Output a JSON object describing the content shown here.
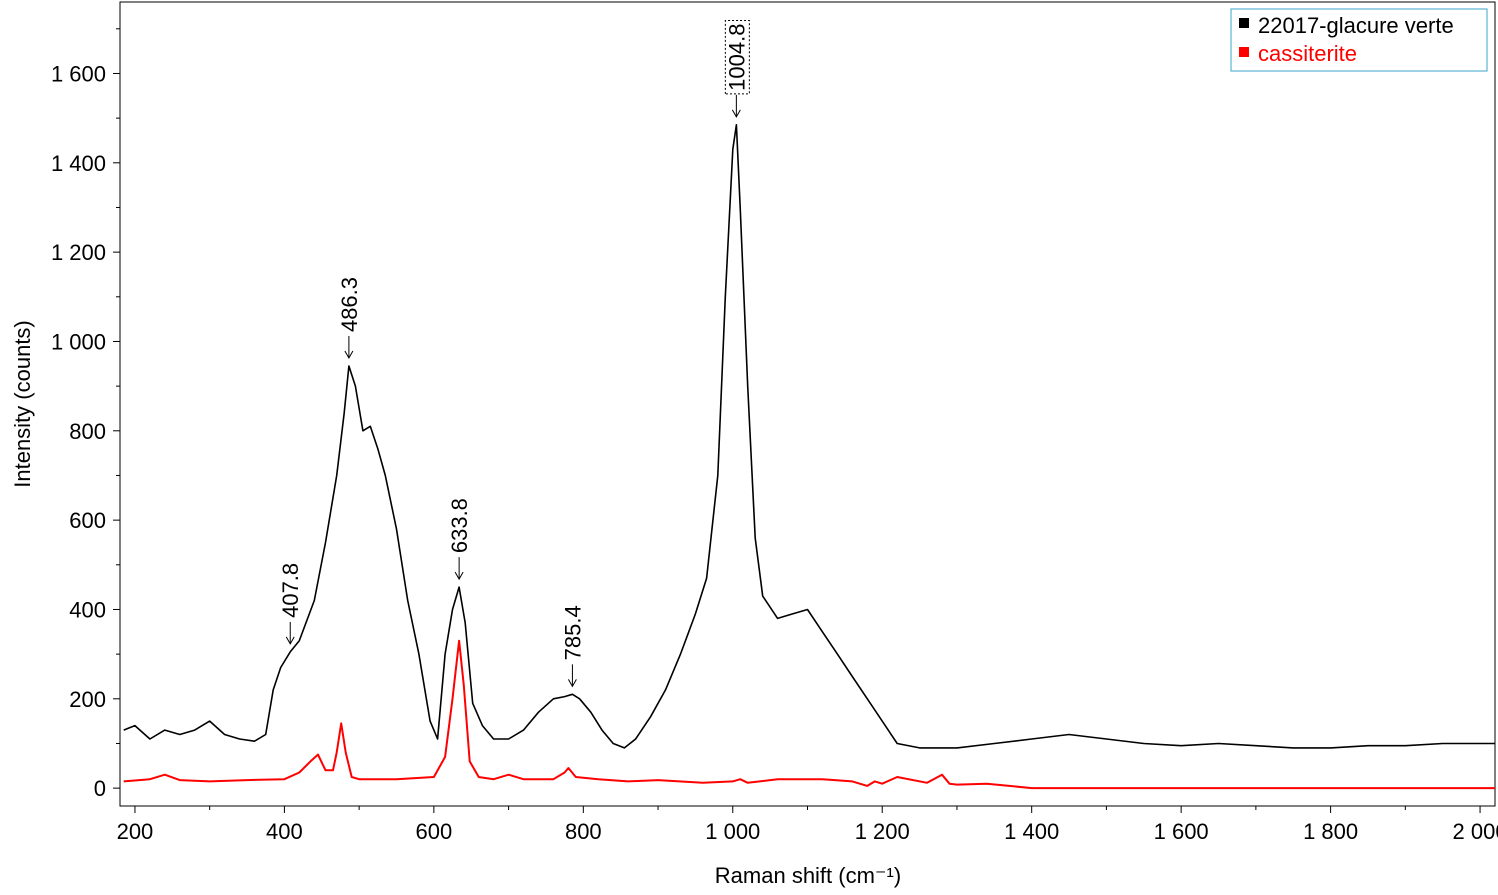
{
  "chart_data": {
    "type": "line",
    "xlabel": "Raman shift (cm⁻¹)",
    "ylabel": "Intensity (counts)",
    "xlim": [
      180,
      2020
    ],
    "ylim": [
      -40,
      1760
    ],
    "x_ticks": [
      200,
      400,
      600,
      800,
      1000,
      1200,
      1400,
      1600,
      1800,
      2000
    ],
    "x_tick_labels": [
      "200",
      "400",
      "600",
      "800",
      "1 000",
      "1 200",
      "1 400",
      "1 600",
      "1 800",
      "2 000"
    ],
    "y_ticks": [
      0,
      200,
      400,
      600,
      800,
      1000,
      1200,
      1400,
      1600
    ],
    "y_tick_labels": [
      "0",
      "200",
      "400",
      "600",
      "800",
      "1 000",
      "1 200",
      "1 400",
      "1 600"
    ],
    "grid": false,
    "legend_position": "top-right",
    "series": [
      {
        "name": "22017-glacure verte",
        "color": "#000000",
        "x": [
          185,
          200,
          220,
          240,
          260,
          280,
          300,
          320,
          340,
          360,
          375,
          385,
          395,
          407.8,
          420,
          440,
          455,
          470,
          480,
          486.3,
          495,
          505,
          515,
          525,
          535,
          550,
          565,
          580,
          595,
          605,
          615,
          625,
          633.8,
          642,
          652,
          665,
          680,
          700,
          720,
          740,
          760,
          775,
          785.4,
          795,
          810,
          825,
          840,
          855,
          870,
          890,
          910,
          930,
          950,
          965,
          980,
          990,
          1000,
          1004.8,
          1010,
          1020,
          1030,
          1040,
          1060,
          1080,
          1100,
          1120,
          1140,
          1160,
          1180,
          1200,
          1220,
          1250,
          1300,
          1350,
          1400,
          1450,
          1500,
          1550,
          1600,
          1650,
          1700,
          1750,
          1800,
          1850,
          1900,
          1950,
          2000,
          2020
        ],
        "y": [
          130,
          140,
          110,
          130,
          120,
          130,
          150,
          120,
          110,
          105,
          120,
          220,
          270,
          305,
          330,
          420,
          550,
          700,
          840,
          945,
          900,
          800,
          810,
          760,
          700,
          580,
          420,
          300,
          150,
          110,
          300,
          400,
          450,
          370,
          190,
          140,
          110,
          110,
          130,
          170,
          200,
          205,
          210,
          200,
          170,
          130,
          100,
          90,
          110,
          160,
          220,
          300,
          390,
          470,
          700,
          1100,
          1430,
          1485,
          1300,
          900,
          560,
          430,
          380,
          390,
          400,
          350,
          300,
          250,
          200,
          150,
          100,
          90,
          90,
          100,
          110,
          120,
          110,
          100,
          95,
          100,
          95,
          90,
          90,
          95,
          95,
          100,
          100,
          100
        ]
      },
      {
        "name": "cassiterite",
        "color": "#ff0000",
        "x": [
          185,
          220,
          240,
          260,
          300,
          350,
          400,
          420,
          435,
          445,
          455,
          465,
          470,
          476,
          482,
          490,
          500,
          550,
          600,
          615,
          625,
          633.8,
          640,
          648,
          660,
          680,
          700,
          720,
          760,
          775,
          780,
          790,
          820,
          860,
          900,
          960,
          1000,
          1010,
          1020,
          1060,
          1120,
          1160,
          1180,
          1190,
          1200,
          1220,
          1260,
          1280,
          1290,
          1300,
          1340,
          1370,
          1400,
          1600,
          1800,
          2020
        ],
        "y": [
          15,
          20,
          30,
          18,
          15,
          18,
          20,
          35,
          60,
          75,
          40,
          40,
          80,
          145,
          80,
          25,
          20,
          20,
          25,
          70,
          200,
          330,
          230,
          60,
          25,
          20,
          30,
          20,
          20,
          35,
          45,
          25,
          20,
          15,
          18,
          12,
          15,
          20,
          12,
          20,
          20,
          15,
          5,
          15,
          10,
          25,
          12,
          30,
          10,
          8,
          10,
          5,
          0,
          0,
          0,
          0
        ]
      }
    ],
    "annotations": [
      {
        "label": "407.8",
        "x": 407.8,
        "y": 305
      },
      {
        "label": "486.3",
        "x": 486.3,
        "y": 945
      },
      {
        "label": "633.8",
        "x": 633.8,
        "y": 450
      },
      {
        "label": "785.4",
        "x": 785.4,
        "y": 210
      },
      {
        "label": "1004.8",
        "x": 1004.8,
        "y": 1485,
        "boxed": true
      }
    ]
  }
}
